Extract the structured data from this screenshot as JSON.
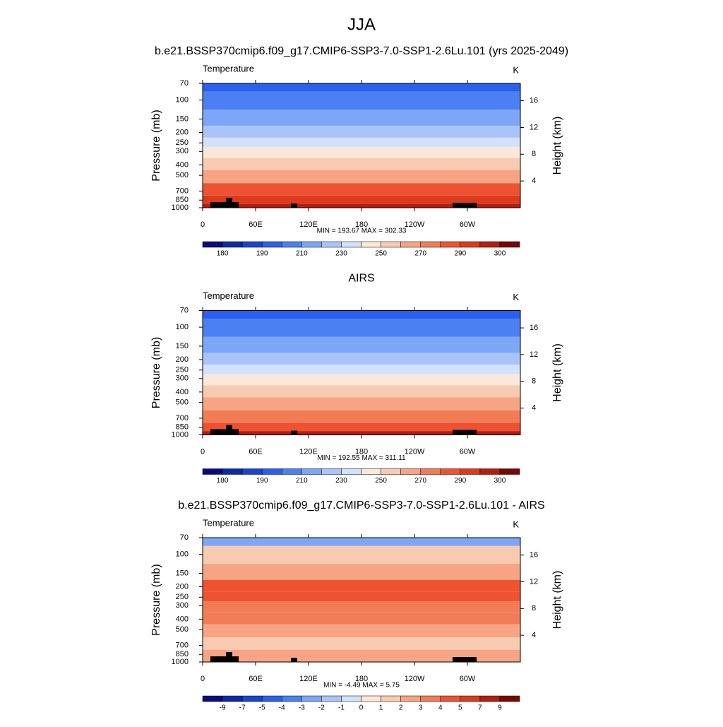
{
  "title": "JJA",
  "chart_data": [
    {
      "type": "contour",
      "title": "b.e21.BSSP370cmip6.f09_g17.CMIP6-SSP3-7.0-SSP1-2.6Lu.101 (yrs 2025-2049)",
      "label_left": "Temperature",
      "label_right": "K",
      "y_label": "Pressure (mb)",
      "y2_label": "Height (km)",
      "xlim": [
        0,
        360
      ],
      "xticks": [
        0,
        {
          "value": 60,
          "label": "60E"
        },
        {
          "value": 120,
          "label": "120E"
        },
        180,
        {
          "value": 240,
          "label": "120W"
        },
        {
          "value": 300,
          "label": "60W"
        }
      ],
      "ylim": [
        1000,
        70
      ],
      "log_y": true,
      "yticks": [
        70,
        100,
        150,
        200,
        250,
        300,
        400,
        500,
        700,
        850,
        1000
      ],
      "y2lim": [
        0,
        18.6
      ],
      "y2ticks": [
        4,
        8,
        12,
        16
      ],
      "stats": "MIN = 193.67  MAX = 302.33",
      "profile": {
        "pressure": [
          70,
          100,
          150,
          200,
          250,
          300,
          400,
          500,
          700,
          850,
          1000
        ],
        "values": [
          198,
          202,
          212,
          222,
          235,
          246,
          258,
          266,
          280,
          290,
          297
        ]
      },
      "colorbar": {
        "levels": [
          180,
          null,
          190,
          null,
          210,
          null,
          230,
          null,
          250,
          null,
          270,
          null,
          290,
          null,
          300
        ],
        "colors": [
          "#0a0a80",
          "#0c2aa8",
          "#1844d0",
          "#2a60ee",
          "#4a80f2",
          "#7ea6f6",
          "#aac4fa",
          "#d2e2fc",
          "#fbe8d8",
          "#f8cbb0",
          "#f6a484",
          "#f27c56",
          "#ee5230",
          "#dc3a1c",
          "#b41e0e",
          "#7a0606"
        ]
      }
    },
    {
      "type": "contour",
      "title": "AIRS",
      "label_left": "Temperature",
      "label_right": "K",
      "y_label": "Pressure (mb)",
      "y2_label": "Height (km)",
      "xlim": [
        0,
        360
      ],
      "xticks": [
        0,
        {
          "value": 60,
          "label": "60E"
        },
        {
          "value": 120,
          "label": "120E"
        },
        180,
        {
          "value": 240,
          "label": "120W"
        },
        {
          "value": 300,
          "label": "60W"
        }
      ],
      "ylim": [
        1000,
        70
      ],
      "log_y": true,
      "yticks": [
        70,
        100,
        150,
        200,
        250,
        300,
        400,
        500,
        700,
        850,
        1000
      ],
      "y2lim": [
        0,
        18.6
      ],
      "y2ticks": [
        4,
        8,
        12,
        16
      ],
      "stats": "MIN = 192.55  MAX = 311.11",
      "profile": {
        "pressure": [
          70,
          100,
          150,
          200,
          250,
          300,
          400,
          500,
          700,
          850,
          1000
        ],
        "values": [
          198,
          202,
          212,
          222,
          234,
          245,
          256,
          264,
          278,
          288,
          296
        ]
      },
      "colorbar": {
        "levels": [
          180,
          null,
          190,
          null,
          210,
          null,
          230,
          null,
          250,
          null,
          270,
          null,
          290,
          null,
          300
        ],
        "colors": [
          "#0a0a80",
          "#0c2aa8",
          "#1844d0",
          "#2a60ee",
          "#4a80f2",
          "#7ea6f6",
          "#aac4fa",
          "#d2e2fc",
          "#fbe8d8",
          "#f8cbb0",
          "#f6a484",
          "#f27c56",
          "#ee5230",
          "#dc3a1c",
          "#b41e0e",
          "#7a0606"
        ]
      }
    },
    {
      "type": "contour",
      "title": "b.e21.BSSP370cmip6.f09_g17.CMIP6-SSP3-7.0-SSP1-2.6Lu.101 - AIRS",
      "label_left": "Temperature",
      "label_right": "K",
      "y_label": "Pressure (mb)",
      "y2_label": "Height (km)",
      "xlim": [
        0,
        360
      ],
      "xticks": [
        0,
        {
          "value": 60,
          "label": "60E"
        },
        {
          "value": 120,
          "label": "120E"
        },
        180,
        {
          "value": 240,
          "label": "120W"
        },
        {
          "value": 300,
          "label": "60W"
        }
      ],
      "ylim": [
        1000,
        70
      ],
      "log_y": true,
      "yticks": [
        70,
        100,
        150,
        200,
        250,
        300,
        400,
        500,
        700,
        850,
        1000
      ],
      "y2lim": [
        0,
        18.6
      ],
      "y2ticks": [
        4,
        8,
        12,
        16
      ],
      "stats": "MIN =  -4.49  MAX =   5.75",
      "profile": {
        "pressure": [
          70,
          100,
          150,
          200,
          250,
          300,
          400,
          500,
          700,
          850,
          1000
        ],
        "values": [
          -2.5,
          1.5,
          2.5,
          4.5,
          4.5,
          3.5,
          3.5,
          2.5,
          1.5,
          2.5,
          2.5
        ]
      },
      "colorbar": {
        "levels": [
          -9,
          -7,
          -5,
          -4,
          -3,
          -2,
          -1,
          0,
          1,
          2,
          3,
          4,
          5,
          7,
          9
        ],
        "colors": [
          "#0a0a80",
          "#0c2aa8",
          "#1844d0",
          "#2a60ee",
          "#4a80f2",
          "#7ea6f6",
          "#aac4fa",
          "#d2e2fc",
          "#fbe8d8",
          "#f8cbb0",
          "#f6a484",
          "#f27c56",
          "#ee5230",
          "#dc3a1c",
          "#b41e0e",
          "#7a0606"
        ]
      }
    }
  ]
}
